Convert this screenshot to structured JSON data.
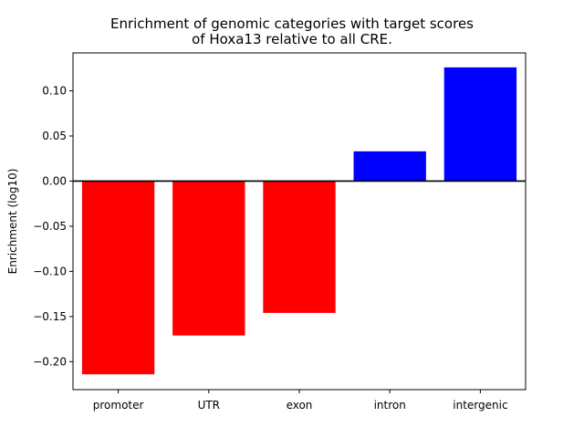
{
  "chart_data": {
    "type": "bar",
    "title_lines": [
      "Enrichment of genomic categories with target scores",
      "of Hoxa13 relative to all CRE."
    ],
    "xlabel": "",
    "ylabel": "Enrichment (log10)",
    "categories": [
      "promoter",
      "UTR",
      "exon",
      "intron",
      "intergenic"
    ],
    "values": [
      -0.214,
      -0.171,
      -0.146,
      0.033,
      0.126
    ],
    "colors": [
      "#ff0000",
      "#ff0000",
      "#ff0000",
      "#0000ff",
      "#0000ff"
    ],
    "ylim": [
      -0.231,
      0.142
    ],
    "yticks": [
      0.1,
      0.05,
      0.0,
      -0.05,
      -0.1,
      -0.15,
      -0.2
    ],
    "ytick_labels": [
      "0.10",
      "0.05",
      "0.00",
      "−0.05",
      "−0.10",
      "−0.15",
      "−0.20"
    ],
    "baseline": 0,
    "grid": false,
    "legend": "none"
  }
}
